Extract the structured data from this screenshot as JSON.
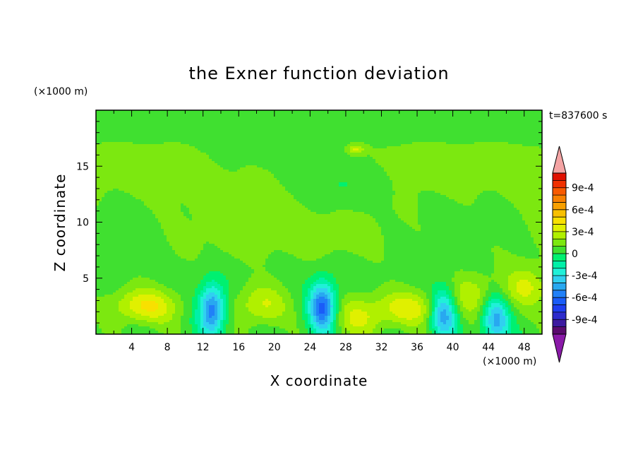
{
  "chart_data": {
    "type": "heatmap",
    "title": "the Exner function deviation",
    "xlabel": "X coordinate",
    "ylabel": "Z coordinate",
    "x_unit": "(×1000 m)",
    "y_unit": "(×1000 m)",
    "time_label": "t=837600 s",
    "xlim": [
      0,
      50
    ],
    "ylim": [
      0,
      20
    ],
    "x_ticks": [
      4,
      8,
      12,
      16,
      20,
      24,
      28,
      32,
      36,
      40,
      44,
      48
    ],
    "y_ticks": [
      5,
      10,
      15
    ],
    "colorbar": {
      "labels": [
        "9e-4",
        "6e-4",
        "3e-4",
        "0",
        "-3e-4",
        "-6e-4",
        "-9e-4"
      ],
      "label_values": [
        0.0009,
        0.0006,
        0.0003,
        0,
        -0.0003,
        -0.0006,
        -0.0009
      ],
      "levels": [
        -0.0011,
        -0.001,
        -0.0009,
        -0.0008,
        -0.0007,
        -0.0006,
        -0.0005,
        -0.0004,
        -0.0003,
        -0.0002,
        -0.0001,
        0,
        0.0001,
        0.0002,
        0.0003,
        0.0004,
        0.0005,
        0.0006,
        0.0007,
        0.0008,
        0.0009,
        0.001,
        0.0011
      ],
      "colors": [
        "#5a0a6e",
        "#3c1aa0",
        "#2e2ccc",
        "#1e3ef0",
        "#1a5cf8",
        "#2080f8",
        "#28a8f0",
        "#30d0f0",
        "#20f0d8",
        "#00f0a8",
        "#00f070",
        "#40e030",
        "#7ce810",
        "#b0f000",
        "#e0f000",
        "#f8e000",
        "#f8c000",
        "#f8a000",
        "#f88000",
        "#f85a00",
        "#f03000",
        "#e01000"
      ],
      "under_color": "#8a1aa8",
      "over_color": "#f4a4a4"
    },
    "fields": {
      "background": 5e-05,
      "upper_band": {
        "value": 0.00013,
        "z_range": [
          6.5,
          17.5
        ]
      },
      "anomalies": [
        {
          "x": 27.2,
          "z": 13.2,
          "amplitude": -0.00012,
          "note": "central cyan patch"
        },
        {
          "x": 25.4,
          "z": 2.4,
          "amplitude": -0.00068,
          "note": "blue column"
        },
        {
          "x": 13.0,
          "z": 2.2,
          "amplitude": -0.00062,
          "note": "blue column"
        },
        {
          "x": 39.0,
          "z": 1.9,
          "amplitude": -0.00055,
          "note": "blue column"
        },
        {
          "x": 44.8,
          "z": 1.3,
          "amplitude": -0.0005,
          "note": "blue column"
        },
        {
          "x": 5.5,
          "z": 2.5,
          "amplitude": 0.00036,
          "note": "yellow region"
        },
        {
          "x": 35.0,
          "z": 2.3,
          "amplitude": 0.0003,
          "note": "yellow region"
        },
        {
          "x": 18.5,
          "z": 2.6,
          "amplitude": 0.00026,
          "note": "yellow-green region"
        },
        {
          "x": 48.2,
          "z": 4.2,
          "amplitude": 0.00026,
          "note": "yellow-green region"
        },
        {
          "x": 29.5,
          "z": 1.5,
          "amplitude": 0.00024,
          "note": "yellow-green region"
        },
        {
          "x": 42.0,
          "z": 3.5,
          "amplitude": 0.00022,
          "note": "yellow-green region"
        },
        {
          "x": 29.2,
          "z": 16.5,
          "amplitude": 0.00025,
          "note": "small yellow-green spot"
        }
      ]
    }
  }
}
